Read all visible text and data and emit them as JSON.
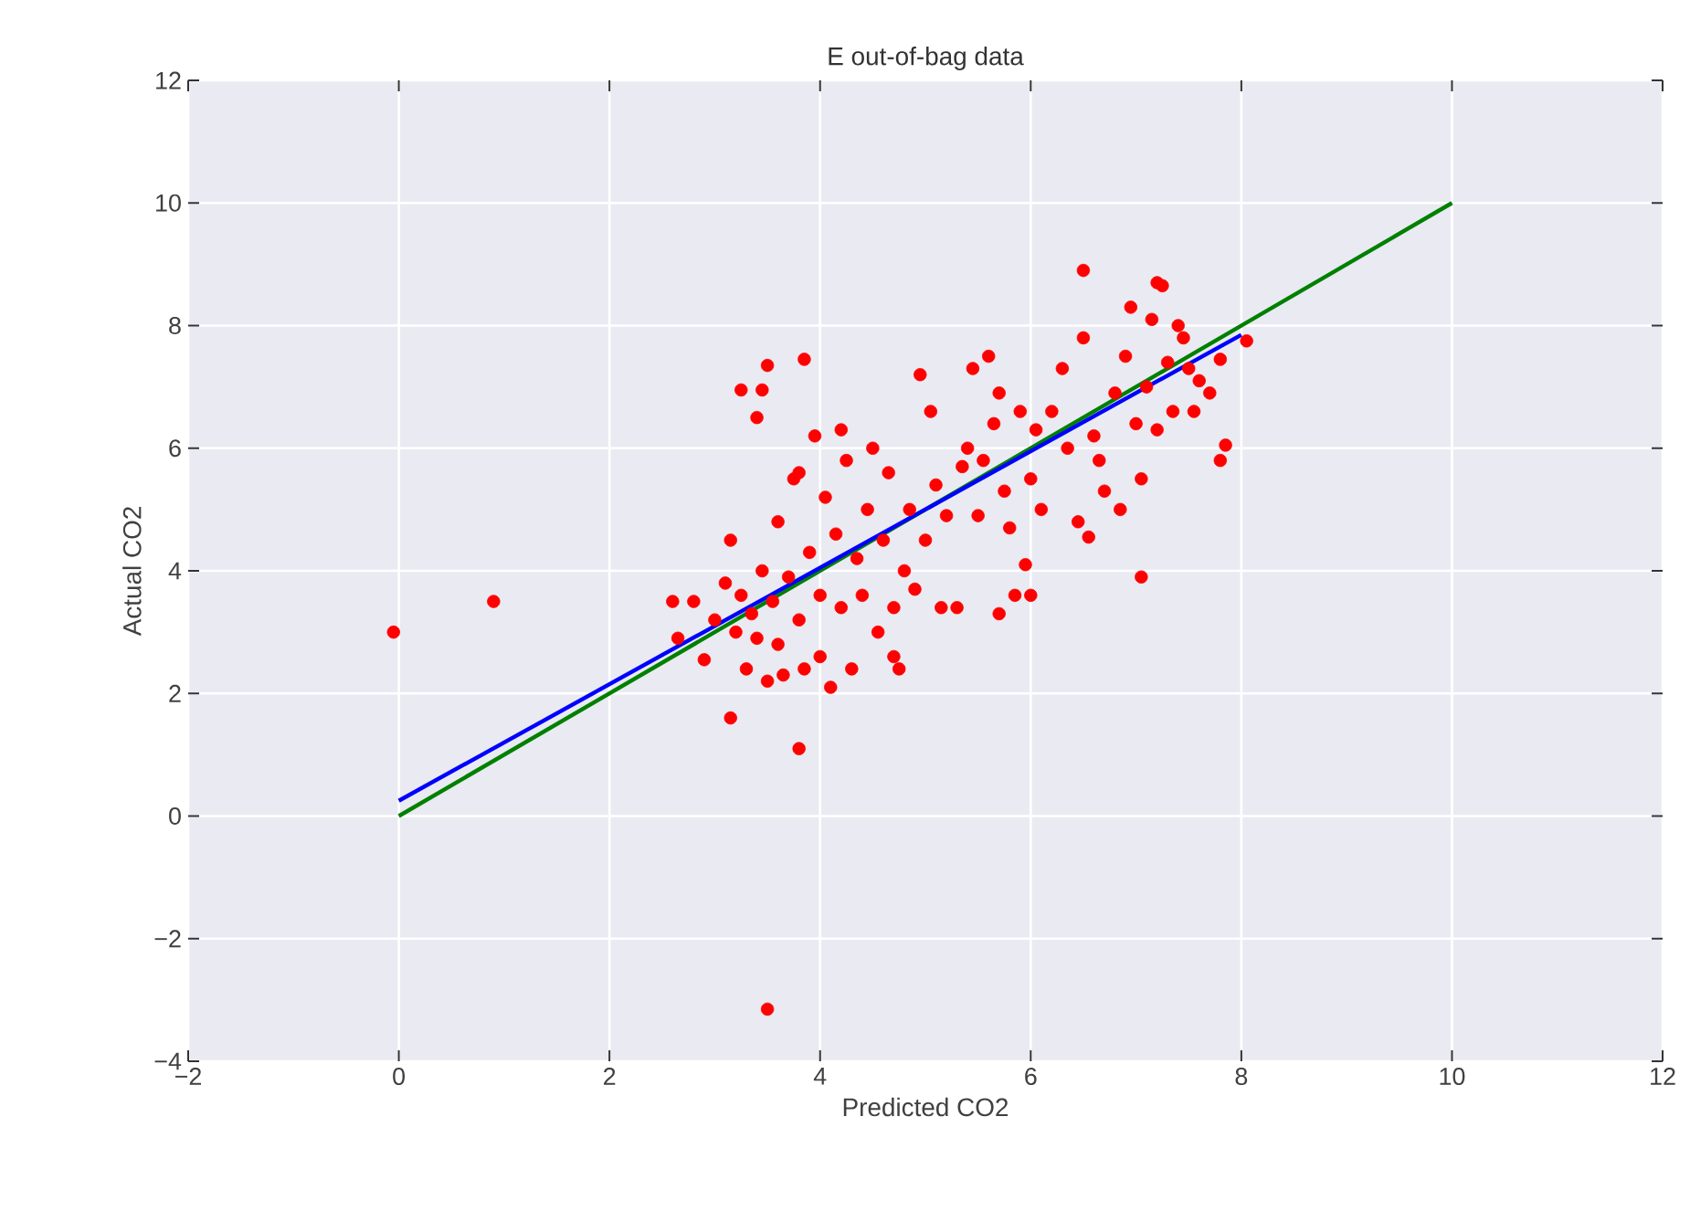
{
  "chart_data": {
    "type": "scatter",
    "title": "E out-of-bag data",
    "xlabel": "Predicted CO2",
    "ylabel": "Actual CO2",
    "xlim": [
      -2,
      12
    ],
    "ylim": [
      -4,
      12
    ],
    "xticks": [
      {
        "value": -2,
        "label": "−2"
      },
      0,
      2,
      4,
      6,
      8,
      10,
      12
    ],
    "yticks": [
      {
        "value": -4,
        "label": "−4"
      },
      {
        "value": -2,
        "label": "−2"
      },
      0,
      2,
      4,
      6,
      8,
      10,
      12
    ],
    "grid": true,
    "series": [
      {
        "marker": "circle",
        "color": "#ff0000",
        "x": [
          -0.05,
          0.9,
          3.5,
          3.8,
          3.15,
          7.05,
          6.5,
          7.2,
          7.25,
          3.85,
          3.45,
          3.25,
          3.4,
          3.5,
          2.6,
          2.65,
          2.8,
          2.9,
          3.0,
          3.1,
          3.15,
          3.2,
          3.25,
          3.3,
          3.35,
          3.4,
          3.45,
          3.5,
          3.55,
          3.6,
          3.6,
          3.65,
          3.7,
          3.75,
          3.8,
          3.8,
          3.85,
          3.9,
          3.95,
          4.0,
          4.0,
          4.05,
          4.1,
          4.15,
          4.2,
          4.2,
          4.25,
          4.3,
          4.35,
          4.4,
          4.45,
          4.5,
          4.55,
          4.6,
          4.65,
          4.7,
          4.7,
          4.75,
          4.8,
          4.85,
          4.9,
          4.95,
          5.0,
          5.05,
          5.1,
          5.15,
          5.2,
          5.3,
          5.35,
          5.4,
          5.45,
          5.5,
          5.55,
          5.6,
          5.65,
          5.7,
          5.7,
          5.75,
          5.8,
          5.85,
          5.9,
          5.95,
          6.0,
          6.0,
          6.05,
          6.1,
          6.2,
          6.3,
          6.35,
          6.45,
          6.5,
          6.55,
          6.6,
          6.65,
          6.7,
          6.8,
          6.85,
          6.9,
          6.95,
          7.0,
          7.05,
          7.1,
          7.15,
          7.2,
          7.3,
          7.35,
          7.4,
          7.45,
          7.5,
          7.55,
          7.6,
          7.7,
          7.8,
          7.8,
          7.85,
          8.05
        ],
        "values": [
          3.0,
          3.5,
          -3.15,
          1.1,
          1.6,
          3.9,
          8.9,
          8.7,
          8.65,
          7.45,
          6.95,
          6.95,
          6.5,
          7.35,
          3.5,
          2.9,
          3.5,
          2.55,
          3.2,
          3.8,
          4.5,
          3.0,
          3.6,
          2.4,
          3.3,
          2.9,
          4.0,
          2.2,
          3.5,
          2.8,
          4.8,
          2.3,
          3.9,
          5.5,
          3.2,
          5.6,
          2.4,
          4.3,
          6.2,
          2.6,
          3.6,
          5.2,
          2.1,
          4.6,
          6.3,
          3.4,
          5.8,
          2.4,
          4.2,
          3.6,
          5.0,
          6.0,
          3.0,
          4.5,
          5.6,
          2.6,
          3.4,
          2.4,
          4.0,
          5.0,
          3.7,
          7.2,
          4.5,
          6.6,
          5.4,
          3.4,
          4.9,
          3.4,
          5.7,
          6.0,
          7.3,
          4.9,
          5.8,
          7.5,
          6.4,
          3.3,
          6.9,
          5.3,
          4.7,
          3.6,
          6.6,
          4.1,
          3.6,
          5.5,
          6.3,
          5.0,
          6.6,
          7.3,
          6.0,
          4.8,
          7.8,
          4.55,
          6.2,
          5.8,
          5.3,
          6.9,
          5.0,
          7.5,
          8.3,
          6.4,
          5.5,
          7.0,
          8.1,
          6.3,
          7.4,
          6.6,
          8.0,
          7.8,
          7.3,
          6.6,
          7.1,
          6.9,
          7.45,
          5.8,
          6.05,
          7.75
        ]
      },
      {
        "type": "line",
        "marker": "none",
        "color": "#008000",
        "x": [
          0,
          10
        ],
        "values": [
          0,
          10
        ]
      },
      {
        "type": "line",
        "marker": "none",
        "color": "#0000ff",
        "x": [
          0,
          8
        ],
        "values": [
          0.25,
          7.85
        ]
      }
    ]
  }
}
